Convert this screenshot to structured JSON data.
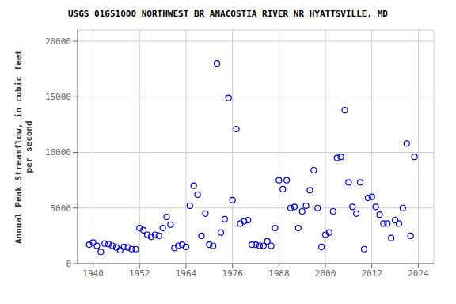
{
  "chart_data": {
    "type": "scatter",
    "title": "USGS 01651000 NORTHWEST BR ANACOSTIA RIVER NR HYATTSVILLE, MD",
    "ylabel": "Annual Peak Streamflow, in cubic feet\nper second",
    "xlim": [
      1936,
      2028
    ],
    "ylim": [
      0,
      21000
    ],
    "xticks": [
      1940,
      1952,
      1964,
      1976,
      1988,
      2000,
      2012,
      2024
    ],
    "yticks": [
      0,
      5000,
      10000,
      15000,
      20000
    ],
    "grid": true,
    "color": "#0000cc",
    "marker": "circle",
    "x": [
      1939,
      1940,
      1941,
      1942,
      1943,
      1944,
      1945,
      1946,
      1947,
      1948,
      1949,
      1950,
      1951,
      1952,
      1953,
      1954,
      1955,
      1956,
      1957,
      1958,
      1959,
      1960,
      1961,
      1962,
      1963,
      1964,
      1965,
      1966,
      1967,
      1968,
      1969,
      1970,
      1971,
      1972,
      1973,
      1974,
      1975,
      1976,
      1977,
      1978,
      1979,
      1980,
      1981,
      1982,
      1983,
      1984,
      1985,
      1986,
      1987,
      1988,
      1989,
      1990,
      1991,
      1992,
      1993,
      1994,
      1995,
      1996,
      1997,
      1998,
      1999,
      2000,
      2001,
      2002,
      2003,
      2004,
      2005,
      2006,
      2007,
      2008,
      2009,
      2010,
      2011,
      2012,
      2013,
      2014,
      2015,
      2016,
      2017,
      2018,
      2019,
      2020,
      2021,
      2022,
      2023
    ],
    "values": [
      1700,
      1900,
      1600,
      1050,
      1800,
      1750,
      1600,
      1450,
      1200,
      1500,
      1450,
      1300,
      1300,
      3200,
      3000,
      2600,
      2400,
      2600,
      2500,
      3200,
      4200,
      3500,
      1400,
      1600,
      1700,
      1500,
      5200,
      7000,
      6200,
      2500,
      4500,
      1700,
      1600,
      18000,
      2800,
      4000,
      14900,
      5700,
      12100,
      3600,
      3800,
      3900,
      1700,
      1700,
      1600,
      1600,
      2000,
      1600,
      3200,
      7500,
      6700,
      7500,
      5000,
      5100,
      3200,
      4700,
      5200,
      6600,
      8400,
      5000,
      1500,
      2600,
      2800,
      4700,
      9500,
      9600,
      13800,
      7300,
      5100,
      4500,
      7300,
      1300,
      5900,
      6000,
      5100,
      4400,
      3600,
      3600,
      2300,
      3900,
      3600,
      5000,
      10800,
      2500,
      9600
    ]
  }
}
